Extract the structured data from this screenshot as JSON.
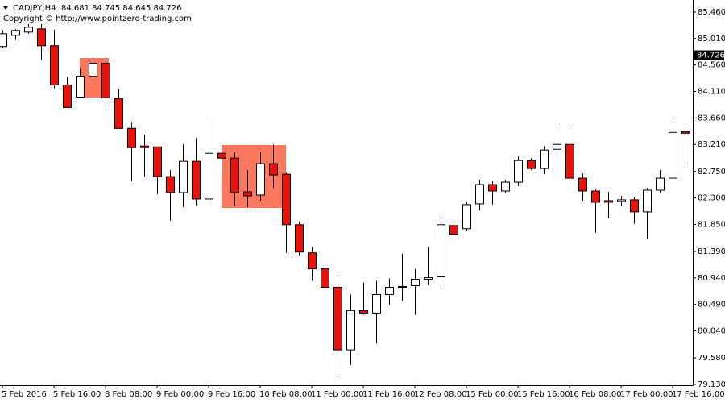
{
  "chart_data": {
    "type": "candlestick",
    "title": "CADJPY,H4",
    "ohlc_label": "84.681 84.745 84.645 84.726",
    "subtitle": "Copyright © http://www.pointzero-trading.com",
    "categories": [
      "5 Feb 2016",
      null,
      null,
      null,
      "5 Feb 16:00",
      null,
      null,
      null,
      "8 Feb 08:00",
      null,
      null,
      null,
      "9 Feb 00:00",
      null,
      null,
      null,
      "9 Feb 16:00",
      null,
      null,
      null,
      "10 Feb 08:00",
      null,
      null,
      null,
      "11 Feb 00:00",
      null,
      null,
      null,
      "11 Feb 16:00",
      null,
      null,
      null,
      "12 Feb 08:00",
      null,
      null,
      null,
      "15 Feb 00:00",
      null,
      null,
      null,
      "15 Feb 16:00",
      null,
      null,
      null,
      "16 Feb 08:00",
      null,
      null,
      null,
      "17 Feb 00:00",
      null,
      null,
      null,
      "17 Feb 16:00",
      null
    ],
    "open": [
      84.874,
      85.065,
      85.119,
      85.174,
      84.887,
      84.219,
      84.014,
      84.369,
      84.587,
      83.987,
      83.482,
      83.182,
      83.168,
      82.663,
      82.391,
      82.923,
      82.282,
      83.059,
      82.977,
      82.404,
      82.35,
      82.882,
      82.704,
      81.845,
      81.367,
      81.095,
      80.781,
      79.717,
      80.385,
      80.344,
      80.658,
      80.781,
      80.808,
      80.917,
      80.958,
      81.831,
      81.777,
      82.2,
      82.527,
      82.418,
      82.568,
      82.936,
      82.8,
      83.127,
      83.209,
      82.636,
      82.418,
      82.254,
      82.241,
      82.268,
      82.063,
      82.432,
      82.636,
      83.428
    ],
    "high": [
      85.147,
      85.174,
      85.256,
      85.256,
      85.16,
      84.355,
      84.505,
      84.683,
      84.683,
      84.151,
      83.591,
      83.373,
      83.168,
      82.773,
      83.209,
      83.318,
      83.687,
      83.141,
      83.073,
      82.773,
      83.073,
      83.209,
      82.732,
      81.9,
      81.463,
      81.163,
      80.999,
      80.658,
      80.863,
      80.89,
      80.931,
      81.354,
      81.095,
      81.463,
      81.954,
      81.886,
      82.227,
      82.609,
      82.595,
      82.609,
      83.005,
      82.977,
      83.182,
      83.523,
      83.482,
      82.718,
      82.445,
      82.404,
      82.336,
      82.309,
      82.473,
      82.773,
      83.646,
      83.509
    ],
    "low": [
      84.846,
      84.983,
      85.092,
      84.642,
      84.164,
      83.837,
      84.014,
      84.287,
      83.891,
      83.482,
      82.582,
      82.663,
      82.363,
      81.913,
      82.145,
      82.172,
      82.241,
      82.704,
      82.172,
      82.145,
      82.254,
      82.473,
      81.367,
      81.326,
      80.89,
      80.781,
      79.294,
      79.458,
      80.317,
      79.826,
      80.481,
      80.549,
      80.317,
      80.822,
      80.753,
      81.681,
      81.736,
      82.091,
      82.186,
      82.391,
      82.5,
      82.773,
      82.704,
      83.073,
      82.595,
      82.254,
      81.709,
      81.954,
      82.159,
      81.859,
      81.613,
      82.391,
      82.636,
      82.882
    ],
    "close": [
      85.092,
      85.147,
      85.201,
      84.887,
      84.219,
      83.837,
      84.369,
      84.587,
      84.001,
      83.482,
      83.155,
      83.155,
      82.663,
      82.391,
      82.923,
      82.282,
      83.059,
      82.977,
      82.391,
      82.336,
      82.882,
      82.691,
      81.845,
      81.381,
      81.095,
      80.781,
      79.717,
      80.385,
      80.344,
      80.658,
      80.781,
      80.795,
      80.917,
      80.944,
      81.845,
      81.681,
      82.186,
      82.527,
      82.418,
      82.568,
      82.936,
      82.8,
      83.114,
      83.209,
      82.636,
      82.418,
      82.227,
      82.227,
      82.268,
      82.063,
      82.432,
      82.636,
      83.414,
      83.4
    ],
    "up_color": "#ffffff",
    "down_color": "#e8120c",
    "line_color": "#000000",
    "ylim": [
      79.116,
      85.665
    ],
    "yticks": [
      {
        "value": 85.46,
        "label": "85.460"
      },
      {
        "value": 85.01,
        "label": "85.010"
      },
      {
        "value": 84.56,
        "label": "84.560"
      },
      {
        "value": 84.11,
        "label": "84.110"
      },
      {
        "value": 83.66,
        "label": "83.660"
      },
      {
        "value": 83.21,
        "label": "83.210"
      },
      {
        "value": 82.75,
        "label": "82.750"
      },
      {
        "value": 82.3,
        "label": "82.300"
      },
      {
        "value": 81.85,
        "label": "81.850"
      },
      {
        "value": 81.39,
        "label": "81.390"
      },
      {
        "value": 80.94,
        "label": "80.940"
      },
      {
        "value": 80.49,
        "label": "80.490"
      },
      {
        "value": 80.04,
        "label": "80.040"
      },
      {
        "value": 79.58,
        "label": "79.580"
      },
      {
        "value": 79.13,
        "label": "79.130"
      }
    ],
    "current_price": 84.726
  }
}
